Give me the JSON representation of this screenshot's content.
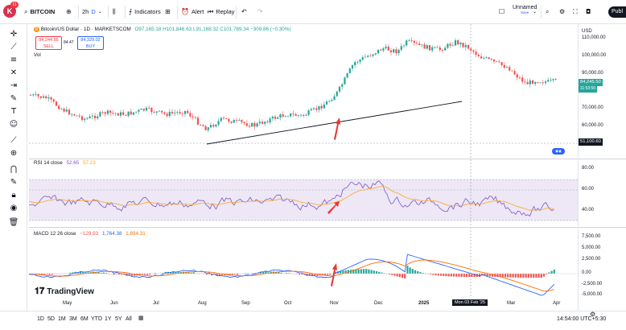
{
  "top_toolbar": {
    "logo_letter": "K",
    "logo_badge": "11",
    "symbol": "BITCOIN",
    "interval": "2h",
    "interval_badge": "D",
    "indicators_label": "Indicators",
    "alert_label": "Alert",
    "replay_label": "Replay",
    "layout_name": "Unnamed",
    "layout_status": "Save",
    "publish_label": "Publ"
  },
  "left_toolbar": {
    "icons": [
      "crosshair-icon",
      "trend-line-icon",
      "fib-icon",
      "pattern-icon",
      "projection-icon",
      "brush-icon",
      "text-icon",
      "emoji-icon",
      "ruler-icon",
      "zoom-icon",
      "magnet-icon",
      "lock-draw-icon",
      "lock-icon",
      "eye-icon",
      "trash-icon"
    ]
  },
  "main_legend": {
    "title": "Bitcoin/US Dollar · 1D · MARKETSCOM",
    "ohlc": "O97,165.18 H101,846.63 L91,168.32 C101,789.34 −309.86 (−0.30%)",
    "vol_label": "Vol",
    "sell_price": "84,244.55",
    "sell_label": "SELL",
    "spread": "84.47",
    "buy_price": "84,329.02",
    "buy_label": "BUY",
    "currency": "USD"
  },
  "price_scale": {
    "main_ticks": [
      "110,000.00",
      "100,000.00",
      "90,000.00",
      "80,000.00",
      "70,000.00",
      "60,000.00"
    ],
    "current_price": "84,245.50",
    "countdown": "11:53:56",
    "crosshair_price": "51,100.60",
    "rsi_ticks": [
      "80.00",
      "60.00",
      "40.00"
    ],
    "macd_ticks": [
      "7,500.00",
      "5,000.00",
      "2,500.00",
      "0.00",
      "-2,500.00",
      "-5,000.00"
    ]
  },
  "rsi_legend": {
    "name": "RSI 14 close",
    "value1": "52.65",
    "value2": "57.23"
  },
  "macd_legend": {
    "name": "MACD 12 26 close",
    "value1": "−129.93",
    "value2": "1,764.38",
    "value3": "1,894.31"
  },
  "time_axis": {
    "labels": [
      "May",
      "Jun",
      "Jul",
      "Aug",
      "Sep",
      "Oct",
      "Nov",
      "Dec",
      "2025",
      "Feb",
      "Mar",
      "Apr"
    ],
    "crosshair_date": "Mon 03 Feb '25"
  },
  "bottom_bar": {
    "ranges": [
      "1D",
      "5D",
      "1M",
      "3M",
      "6M",
      "YTD",
      "1Y",
      "5Y",
      "All"
    ],
    "clock": "14:54:00 UTC+5:30"
  },
  "branding": {
    "logo_text": "TradingView"
  },
  "colors": {
    "up": "#26a69a",
    "down": "#ef5350",
    "rsi_line": "#7e57c2",
    "rsi_ma": "#f9a825",
    "macd_line": "#2962ff",
    "signal_line": "#ff6d00",
    "annotation_arrow": "#e53935"
  }
}
